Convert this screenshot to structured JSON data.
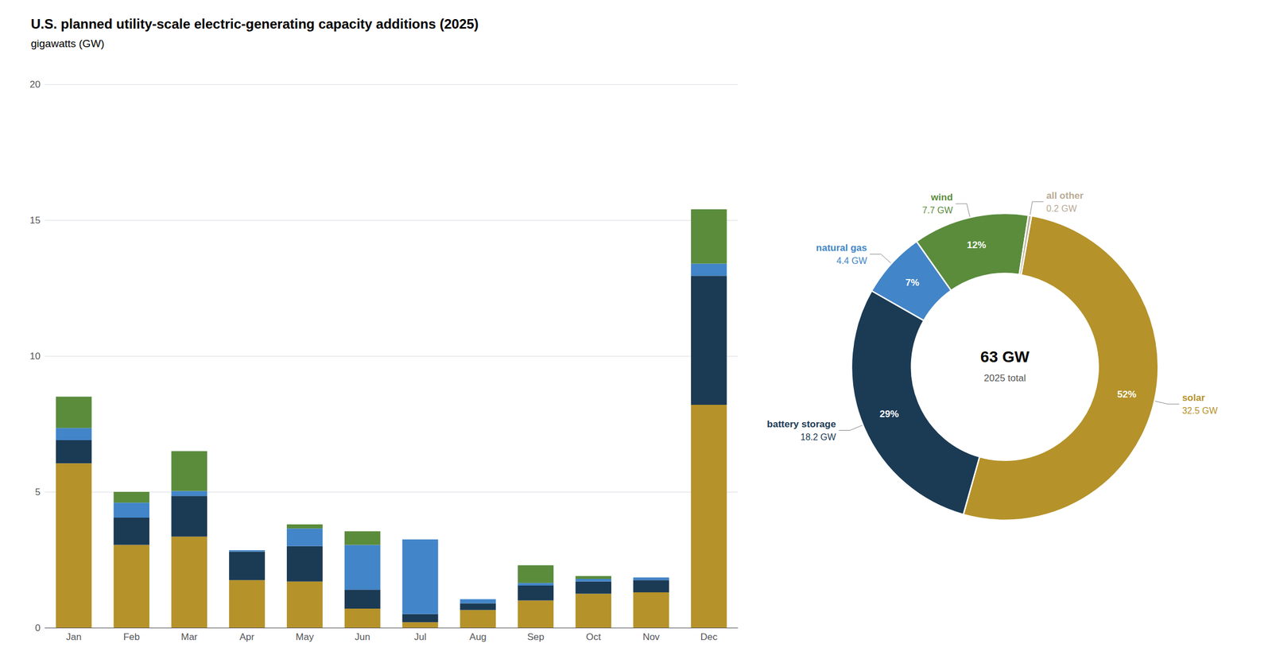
{
  "chart_data": [
    {
      "type": "bar",
      "title": "U.S. planned utility-scale electric-generating capacity additions (2025)",
      "subtitle": "gigawatts (GW)",
      "categories": [
        "Jan",
        "Feb",
        "Mar",
        "Apr",
        "May",
        "Jun",
        "Jul",
        "Aug",
        "Sep",
        "Oct",
        "Nov",
        "Dec"
      ],
      "series": [
        {
          "color": "#b5922a",
          "values": [
            6.05,
            3.05,
            3.35,
            1.75,
            1.7,
            0.7,
            0.2,
            0.65,
            1.0,
            1.25,
            1.3,
            8.2
          ]
        },
        {
          "color": "#1b3a54",
          "values": [
            0.85,
            1.0,
            1.5,
            1.05,
            1.3,
            0.7,
            0.3,
            0.25,
            0.55,
            0.45,
            0.45,
            4.75
          ]
        },
        {
          "color": "#4285c8",
          "values": [
            0.45,
            0.55,
            0.18,
            0.05,
            0.65,
            1.65,
            2.75,
            0.15,
            0.1,
            0.1,
            0.1,
            0.45
          ]
        },
        {
          "color": "#5a8c3c",
          "values": [
            1.15,
            0.4,
            1.47,
            0.0,
            0.15,
            0.5,
            0.0,
            0.0,
            0.65,
            0.1,
            0.0,
            2.0
          ]
        }
      ],
      "stacked": true,
      "ylim": [
        0,
        20
      ],
      "yticks": [
        0,
        5,
        10,
        15,
        20
      ],
      "grid": true
    },
    {
      "type": "pie",
      "categories": [
        "solar",
        "battery storage",
        "natural gas",
        "wind",
        "all other"
      ],
      "values": [
        32.5,
        18.2,
        4.4,
        7.7,
        0.2
      ],
      "value_labels": [
        "32.5 GW",
        "18.2 GW",
        "4.4 GW",
        "7.7 GW",
        "0.2 GW"
      ],
      "percents": [
        52,
        29,
        7,
        12,
        null
      ],
      "percent_labels": [
        "52%",
        "29%",
        "7%",
        "12%",
        null
      ],
      "colors": [
        "#b5922a",
        "#1b3a54",
        "#4285c8",
        "#5a8c3c",
        "#b8aa96"
      ],
      "annotations": [
        "63 GW",
        "2025 total"
      ]
    }
  ]
}
